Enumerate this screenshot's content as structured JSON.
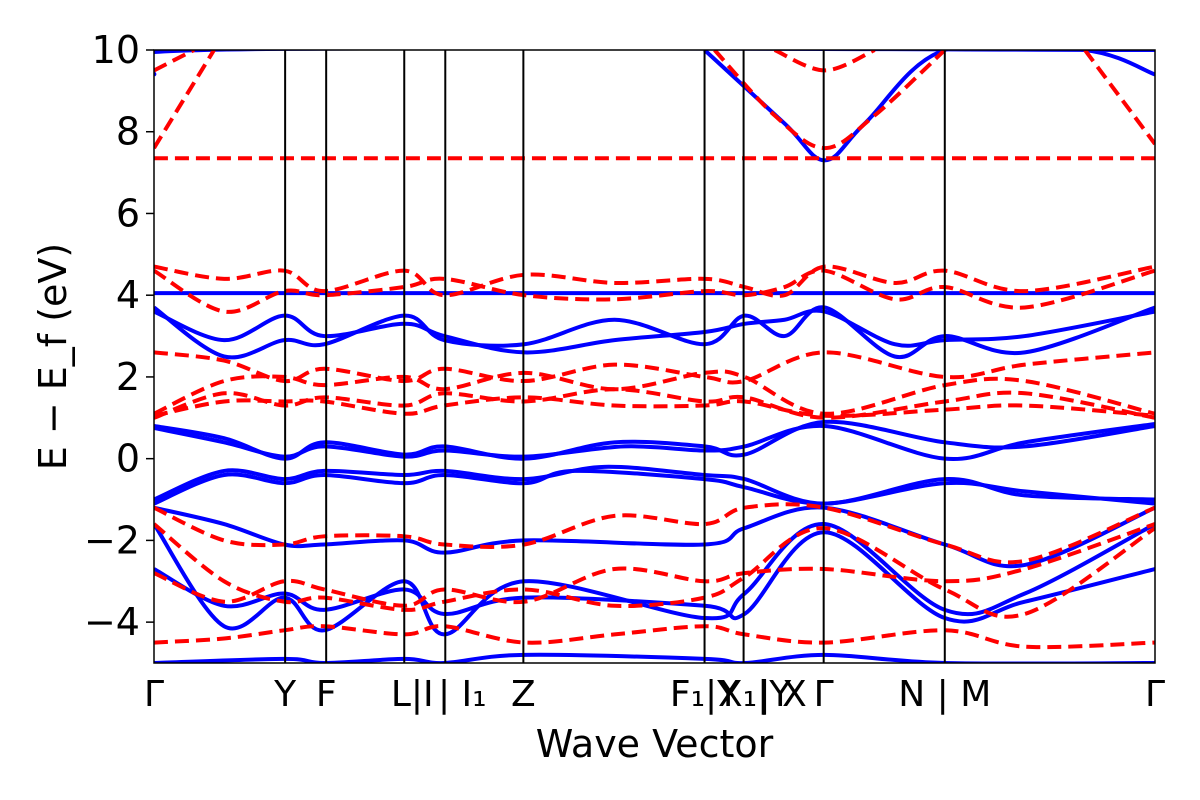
{
  "chart_data": {
    "type": "line",
    "title": "",
    "xlabel": "Wave Vector",
    "ylabel": "E − E_f (eV)",
    "ylim": [
      -5,
      10
    ],
    "xlim": [
      0,
      1
    ],
    "yticks": [
      -4,
      -2,
      0,
      2,
      4,
      6,
      8,
      10
    ],
    "ytick_labels": [
      "−4",
      "−2",
      "0",
      "2",
      "4",
      "6",
      "8",
      "10"
    ],
    "high_symmetry_points": [
      {
        "x": 0.0,
        "label": "Γ"
      },
      {
        "x": 0.131,
        "label": "Y"
      },
      {
        "x": 0.172,
        "label": "F"
      },
      {
        "x": 0.25,
        "label": "L|I"
      },
      {
        "x": 0.291,
        "label": "I₁"
      },
      {
        "x": 0.369,
        "label": "Z"
      },
      {
        "x": 0.55,
        "label": "F₁|Y"
      },
      {
        "x": 0.589,
        "label": "X₁|Y"
      },
      {
        "x": 0.669,
        "label": "X"
      },
      {
        "x": 0.669,
        "label": "Γ"
      },
      {
        "x": 0.79,
        "label": "N|M"
      },
      {
        "x": 1.0,
        "label": "Γ"
      }
    ],
    "xtick_labels_display": [
      "Γ",
      "Y",
      "F",
      "L|I",
      "| I₁",
      "Z",
      "F₁|Y",
      "X₁|Y",
      "| X",
      "Γ",
      "N | M",
      "Γ"
    ],
    "grid": false,
    "series": [
      {
        "style": "solid",
        "color": "#0000ff",
        "bands": [
          {
            "x": [
              0,
              0.13,
              0.17,
              0.25,
              0.29,
              0.37,
              0.55,
              0.59,
              0.67,
              0.79,
              1
            ],
            "y": [
              -5,
              -4.9,
              -5,
              -4.9,
              -5,
              -4.8,
              -4.9,
              -5,
              -4.8,
              -5,
              -5
            ]
          },
          {
            "x": [
              0,
              0.07,
              0.13,
              0.17,
              0.25,
              0.29,
              0.37,
              0.55,
              0.59,
              0.67,
              0.79,
              0.87,
              1
            ],
            "y": [
              -1.6,
              -4.1,
              -3.4,
              -4.2,
              -3.0,
              -4.3,
              -3.0,
              -3.9,
              -3.3,
              -1.6,
              -3.7,
              -3.3,
              -1.6
            ]
          },
          {
            "x": [
              0,
              0.07,
              0.13,
              0.17,
              0.25,
              0.29,
              0.37,
              0.55,
              0.59,
              0.67,
              0.79,
              0.87,
              1
            ],
            "y": [
              -2.7,
              -3.6,
              -3.3,
              -3.7,
              -3.2,
              -3.8,
              -3.4,
              -3.6,
              -3.8,
              -1.8,
              -3.9,
              -3.5,
              -2.7
            ]
          },
          {
            "x": [
              0,
              0.07,
              0.13,
              0.17,
              0.25,
              0.29,
              0.37,
              0.55,
              0.59,
              0.67,
              0.79,
              0.87,
              1
            ],
            "y": [
              -1.2,
              -1.6,
              -2.1,
              -2.1,
              -2.0,
              -2.3,
              -2.0,
              -2.1,
              -1.7,
              -1.2,
              -2.1,
              -2.6,
              -1.2
            ]
          },
          {
            "x": [
              0,
              0.07,
              0.13,
              0.17,
              0.25,
              0.29,
              0.37,
              0.42,
              0.55,
              0.59,
              0.67,
              0.79,
              0.87,
              1
            ],
            "y": [
              -1.1,
              -0.4,
              -0.6,
              -0.4,
              -0.6,
              -0.4,
              -0.6,
              -0.3,
              -0.5,
              -0.7,
              -1.1,
              -0.6,
              -0.8,
              -1.1
            ]
          },
          {
            "x": [
              0,
              0.07,
              0.13,
              0.17,
              0.25,
              0.29,
              0.37,
              0.45,
              0.55,
              0.59,
              0.67,
              0.79,
              0.87,
              1
            ],
            "y": [
              -1.0,
              -0.3,
              -0.5,
              -0.3,
              -0.4,
              -0.3,
              -0.5,
              -0.2,
              -0.4,
              -0.5,
              -1.1,
              -0.5,
              -0.9,
              -1.0
            ]
          },
          {
            "x": [
              0,
              0.07,
              0.13,
              0.17,
              0.25,
              0.29,
              0.37,
              0.46,
              0.55,
              0.59,
              0.67,
              0.79,
              0.87,
              1
            ],
            "y": [
              0.8,
              0.5,
              0.0,
              0.4,
              0.1,
              0.3,
              0.0,
              0.4,
              0.3,
              0.1,
              0.9,
              0.4,
              0.3,
              0.8
            ]
          },
          {
            "x": [
              0,
              0.07,
              0.13,
              0.17,
              0.25,
              0.29,
              0.37,
              0.47,
              0.55,
              0.59,
              0.67,
              0.79,
              0.87,
              1
            ],
            "y": [
              0.75,
              0.4,
              0.05,
              0.3,
              0.05,
              0.2,
              0.05,
              0.3,
              0.2,
              0.3,
              0.8,
              0.0,
              0.4,
              0.85
            ]
          },
          {
            "x": [
              0,
              0.07,
              0.13,
              0.17,
              0.25,
              0.29,
              0.37,
              0.46,
              0.55,
              0.59,
              0.63,
              0.67,
              0.74,
              0.79,
              0.87,
              1
            ],
            "y": [
              3.7,
              2.5,
              2.9,
              2.8,
              3.5,
              2.9,
              2.8,
              3.4,
              2.8,
              3.5,
              3.0,
              3.7,
              2.5,
              3.0,
              2.6,
              3.7
            ]
          },
          {
            "x": [
              0,
              0.07,
              0.13,
              0.17,
              0.25,
              0.29,
              0.37,
              0.46,
              0.55,
              0.59,
              0.63,
              0.67,
              0.74,
              0.79,
              0.87,
              1
            ],
            "y": [
              3.6,
              2.9,
              3.5,
              3.0,
              3.3,
              3.0,
              2.6,
              2.9,
              3.1,
              3.3,
              3.4,
              3.6,
              2.8,
              2.9,
              3.0,
              3.6
            ]
          },
          {
            "x": [
              0,
              1
            ],
            "y": [
              4.05,
              4.05
            ]
          },
          {
            "x": [
              0,
              0.05,
              1
            ],
            "y": [
              9.4,
              10.0,
              10.0
            ]
          },
          {
            "x": [
              0.55,
              0.63,
              0.67,
              0.71,
              0.79,
              0.93,
              1
            ],
            "y": [
              10.0,
              8.2,
              7.3,
              8.2,
              10.0,
              10.0,
              9.4
            ]
          }
        ]
      },
      {
        "style": "dashed",
        "color": "#ff0000",
        "bands": [
          {
            "x": [
              0,
              1
            ],
            "y": [
              7.35,
              7.35
            ]
          },
          {
            "x": [
              0,
              0.06
            ],
            "y": [
              7.6,
              10.0
            ]
          },
          {
            "x": [
              0,
              0.04
            ],
            "y": [
              9.5,
              10.0
            ]
          },
          {
            "x": [
              0.56,
              0.62,
              0.67,
              0.72,
              0.79
            ],
            "y": [
              10.0,
              8.4,
              7.6,
              8.4,
              10.0
            ]
          },
          {
            "x": [
              0.62,
              0.67,
              0.72
            ],
            "y": [
              10.0,
              9.5,
              10.0
            ]
          },
          {
            "x": [
              0.93,
              1
            ],
            "y": [
              10.0,
              7.7
            ]
          },
          {
            "x": [
              0,
              0.07,
              0.13,
              0.17,
              0.25,
              0.29,
              0.37,
              0.46,
              0.55,
              0.59,
              0.63,
              0.67,
              0.74,
              0.79,
              0.87,
              1
            ],
            "y": [
              4.7,
              4.4,
              4.6,
              4.1,
              4.6,
              4.0,
              4.5,
              4.3,
              4.4,
              4.2,
              4.0,
              4.7,
              4.3,
              4.6,
              4.1,
              4.7
            ]
          },
          {
            "x": [
              0,
              0.07,
              0.13,
              0.17,
              0.25,
              0.29,
              0.37,
              0.46,
              0.55,
              0.59,
              0.63,
              0.67,
              0.74,
              0.79,
              0.87,
              1
            ],
            "y": [
              4.6,
              3.6,
              4.1,
              4.0,
              4.2,
              4.4,
              4.0,
              3.9,
              4.1,
              4.0,
              4.2,
              4.6,
              3.9,
              4.2,
              3.7,
              4.6
            ]
          },
          {
            "x": [
              0,
              0.07,
              0.13,
              0.17,
              0.25,
              0.29,
              0.37,
              0.46,
              0.55,
              0.59,
              0.67,
              0.79,
              0.87,
              1
            ],
            "y": [
              2.6,
              2.4,
              1.9,
              2.2,
              1.9,
              2.2,
              1.9,
              2.3,
              2.0,
              1.9,
              2.6,
              2.0,
              2.3,
              2.6
            ]
          },
          {
            "x": [
              0,
              0.07,
              0.13,
              0.17,
              0.25,
              0.29,
              0.37,
              0.46,
              0.55,
              0.59,
              0.67,
              0.79,
              0.87,
              1
            ],
            "y": [
              1.1,
              1.9,
              2.0,
              1.8,
              2.0,
              1.7,
              2.1,
              1.7,
              2.1,
              2.0,
              1.1,
              1.8,
              1.9,
              1.1
            ]
          },
          {
            "x": [
              0,
              0.07,
              0.13,
              0.17,
              0.25,
              0.29,
              0.37,
              0.46,
              0.55,
              0.59,
              0.67,
              0.79,
              0.87,
              1
            ],
            "y": [
              1.0,
              1.6,
              1.3,
              1.5,
              1.3,
              1.6,
              1.4,
              1.7,
              1.4,
              1.5,
              1.0,
              1.4,
              1.6,
              1.0
            ]
          },
          {
            "x": [
              0,
              0.07,
              0.13,
              0.17,
              0.25,
              0.29,
              0.37,
              0.46,
              0.55,
              0.59,
              0.67,
              0.79,
              0.87,
              1
            ],
            "y": [
              1.05,
              1.4,
              1.4,
              1.4,
              1.1,
              1.3,
              1.5,
              1.3,
              1.3,
              1.4,
              1.05,
              1.2,
              1.3,
              1.05
            ]
          },
          {
            "x": [
              0,
              0.07,
              0.13,
              0.17,
              0.25,
              0.29,
              0.37,
              0.46,
              0.55,
              0.59,
              0.67,
              0.79,
              0.87,
              1
            ],
            "y": [
              -1.2,
              -2.0,
              -2.1,
              -1.9,
              -1.9,
              -2.1,
              -2.1,
              -1.4,
              -1.6,
              -1.2,
              -1.2,
              -2.1,
              -2.5,
              -1.2
            ]
          },
          {
            "x": [
              0,
              0.07,
              0.13,
              0.17,
              0.25,
              0.29,
              0.37,
              0.46,
              0.55,
              0.59,
              0.67,
              0.79,
              0.87,
              1
            ],
            "y": [
              -2.8,
              -3.5,
              -3.0,
              -3.2,
              -3.6,
              -3.2,
              -3.5,
              -2.7,
              -3.0,
              -2.8,
              -2.7,
              -3.0,
              -2.7,
              -1.6
            ]
          },
          {
            "x": [
              0,
              0.07,
              0.13,
              0.17,
              0.25,
              0.29,
              0.37,
              0.46,
              0.55,
              0.59,
              0.67,
              0.79,
              0.87,
              1
            ],
            "y": [
              -4.5,
              -4.4,
              -4.2,
              -4.1,
              -4.3,
              -4.1,
              -4.5,
              -4.3,
              -4.1,
              -4.3,
              -4.5,
              -4.2,
              -4.6,
              -4.5
            ]
          },
          {
            "x": [
              0,
              0.07,
              0.13,
              0.17,
              0.25,
              0.29,
              0.37,
              0.46,
              0.55,
              0.59,
              0.67,
              0.79,
              0.87,
              1
            ],
            "y": [
              -1.6,
              -3.0,
              -3.5,
              -3.4,
              -3.7,
              -3.5,
              -3.2,
              -3.6,
              -3.4,
              -2.9,
              -1.7,
              -3.2,
              -3.8,
              -1.7
            ]
          }
        ]
      }
    ]
  }
}
